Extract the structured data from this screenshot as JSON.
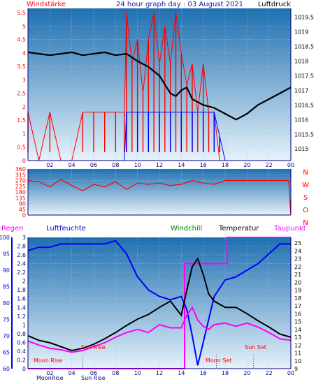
{
  "header": {
    "left_label": "Windstärke",
    "center_label": "24 hour graph day : 03 August 2021",
    "right_label": "Luftdruck"
  },
  "mid_header": {
    "regen": "Regen",
    "luftfeuchte": "Luftfeuchte",
    "windchill": "Windchill",
    "temperatur": "Temperatur",
    "taupunkt": "Taupunkt"
  },
  "colors": {
    "background": "#ffffff",
    "plot_top": "#1e6fb0",
    "plot_bottom": "#e6f2fa",
    "wind_red": "#ff0000",
    "wind_blue": "#0000ff",
    "pressure": "#000000",
    "humidity": "#0000ff",
    "windchill": "#007f00",
    "temperature": "#000000",
    "dewpoint": "#ff00ff",
    "rain": "#ff00ff",
    "direction": "#ff0000"
  },
  "x_tick_labels": [
    "02",
    "04",
    "06",
    "08",
    "10",
    "12",
    "14",
    "16",
    "18",
    "20",
    "22",
    "00"
  ],
  "astro_labels": {
    "moon_rise": "Moon Rise",
    "sun_rise": "Sun Rise",
    "moon_set": "Moon Set",
    "sun_set": "Sun Set",
    "bottom_moon": "MoonRise",
    "bottom_sun": "Sun Rise"
  },
  "chart_data": [
    {
      "type": "line",
      "name": "wind-and-pressure",
      "x_range": [
        0,
        24
      ],
      "left_axis": {
        "ticks": [
          "0",
          "0.5",
          "1",
          "1.5",
          "2",
          "2.5",
          "3",
          "3.5",
          "4",
          "4.5",
          "5",
          "5.5"
        ],
        "ylim": [
          0,
          5.5
        ]
      },
      "right_axis": {
        "ticks": [
          "1015",
          "1015.5",
          "1016",
          "1016.5",
          "1017",
          "1017.5",
          "1018",
          "1018.5",
          "1019",
          "1019.5"
        ],
        "ylim": [
          1014.6,
          1019.8
        ]
      },
      "series": [
        {
          "role": "pressure",
          "x": [
            0,
            1,
            2,
            3,
            4,
            5,
            6,
            7,
            8,
            9,
            10,
            11,
            12,
            13,
            13.5,
            14,
            14.5,
            15,
            16,
            17,
            18,
            19,
            20,
            21,
            22,
            23,
            24
          ],
          "y": [
            1018.3,
            1018.25,
            1018.2,
            1018.25,
            1018.3,
            1018.2,
            1018.25,
            1018.3,
            1018.2,
            1018.25,
            1018.0,
            1017.8,
            1017.5,
            1016.9,
            1016.8,
            1017.0,
            1017.1,
            1016.7,
            1016.5,
            1016.4,
            1016.2,
            1016.0,
            1016.2,
            1016.5,
            1016.7,
            1016.9,
            1017.1
          ]
        },
        {
          "role": "wind-gust",
          "x": [
            0,
            1,
            2,
            3,
            4,
            5,
            6,
            7,
            8,
            8.8,
            9,
            9.5,
            10,
            10.5,
            11,
            11.5,
            12,
            12.5,
            13,
            13.5,
            14,
            14.5,
            15,
            15.5,
            16,
            16.5,
            17,
            17.5,
            18,
            19,
            20,
            21,
            22,
            23,
            24
          ],
          "y": [
            1.8,
            0,
            1.8,
            0,
            0,
            1.8,
            1.8,
            1.8,
            1.8,
            1.8,
            5.5,
            3.6,
            4.5,
            2.5,
            4.5,
            5.5,
            3.6,
            5.0,
            3.6,
            5.5,
            4.0,
            2.8,
            3.6,
            1.8,
            3.6,
            1.8,
            1.8,
            0,
            0,
            0,
            0,
            0,
            0,
            0,
            0
          ]
        },
        {
          "role": "wind-average",
          "x": [
            0,
            8,
            8.8,
            9,
            10,
            11,
            12,
            13,
            14,
            15,
            16,
            17,
            17.5,
            18,
            24
          ],
          "y": [
            0,
            0,
            0,
            1.8,
            1.8,
            1.8,
            1.8,
            1.8,
            1.8,
            1.8,
            1.8,
            1.8,
            0.9,
            0,
            0
          ]
        }
      ]
    },
    {
      "type": "line",
      "name": "wind-direction",
      "x_range": [
        0,
        24
      ],
      "left_axis": {
        "ticks": [
          "0",
          "45",
          "90",
          "135",
          "180",
          "225",
          "270",
          "315",
          "360"
        ],
        "ylim": [
          0,
          360
        ]
      },
      "right_labels": [
        "N",
        "W",
        "S",
        "O",
        "N"
      ],
      "series": [
        {
          "role": "direction",
          "x": [
            0,
            1,
            2,
            3,
            4,
            5,
            6,
            7,
            8,
            9,
            10,
            11,
            12,
            13,
            14,
            15,
            16,
            17,
            18,
            19,
            20,
            21,
            22,
            23,
            23.8,
            24
          ],
          "y": [
            270,
            260,
            220,
            280,
            230,
            190,
            240,
            220,
            260,
            200,
            250,
            240,
            250,
            230,
            240,
            270,
            250,
            240,
            270,
            270,
            270,
            270,
            270,
            270,
            270,
            0
          ]
        }
      ]
    },
    {
      "type": "line",
      "name": "humidity-temperature",
      "x_range": [
        0,
        24
      ],
      "humidity_axis": {
        "ticks": [
          "60",
          "65",
          "70",
          "75",
          "80",
          "85",
          "90",
          "95",
          "100"
        ],
        "ylim": [
          60,
          100
        ]
      },
      "rain_axis": {
        "ticks": [
          "0",
          "0.2",
          "0.4",
          "0.6",
          "0.8",
          "1",
          "1.2",
          "1.4",
          "1.6",
          "1.8",
          "2",
          "2.2",
          "2.4",
          "2.6",
          "2.8",
          "3"
        ],
        "ylim": [
          0,
          3
        ]
      },
      "temperature_axis": {
        "ticks": [
          "9",
          "10",
          "11",
          "12",
          "13",
          "14",
          "15",
          "16",
          "17",
          "18",
          "19",
          "20",
          "21",
          "22",
          "23",
          "24",
          "25"
        ],
        "ylim": [
          9,
          25
        ]
      },
      "series": [
        {
          "role": "humidity",
          "x": [
            0,
            1,
            2,
            3,
            4,
            5,
            6,
            7,
            8,
            9,
            10,
            11,
            12,
            13,
            14,
            14.5,
            15,
            15.5,
            16,
            16.5,
            17,
            18,
            19,
            20,
            21,
            22,
            23,
            24
          ],
          "y": [
            96,
            97,
            97,
            98,
            98,
            98,
            98,
            98,
            99,
            95,
            88,
            84,
            82,
            81,
            82,
            78,
            70,
            61,
            68,
            75,
            82,
            87,
            88,
            90,
            92,
            95,
            98,
            98
          ]
        },
        {
          "role": "temperature",
          "x": [
            0,
            1,
            2,
            3,
            4,
            5,
            6,
            7,
            8,
            9,
            10,
            11,
            12,
            13,
            14,
            14.5,
            15,
            15.5,
            16,
            16.5,
            17,
            18,
            19,
            20,
            21,
            22,
            23,
            24
          ],
          "y": [
            13.2,
            12.6,
            12.3,
            11.8,
            11.3,
            11.6,
            12.1,
            12.8,
            13.6,
            14.5,
            15.3,
            15.9,
            16.8,
            17.6,
            15.8,
            19,
            22,
            23,
            21,
            18.5,
            17.6,
            16.8,
            16.8,
            16.0,
            15.1,
            14.3,
            13.4,
            13.0
          ]
        },
        {
          "role": "dewpoint",
          "x": [
            0,
            1,
            2,
            3,
            4,
            5,
            6,
            7,
            8,
            9,
            10,
            11,
            12,
            13,
            14,
            14.5,
            15,
            15.5,
            16,
            16.5,
            17,
            18,
            19,
            20,
            21,
            22,
            23,
            24
          ],
          "y": [
            12.5,
            12.0,
            11.6,
            11.4,
            11.1,
            11.3,
            11.8,
            12.3,
            13.0,
            13.6,
            14.0,
            13.6,
            14.6,
            14.2,
            14.2,
            15.8,
            16.8,
            15.2,
            14.4,
            14.0,
            14.6,
            14.8,
            14.4,
            14.8,
            14.3,
            13.6,
            12.8,
            12.6
          ]
        },
        {
          "role": "rain",
          "x": [
            0,
            14.3,
            14.3,
            18.2,
            18.2,
            24
          ],
          "y": [
            0,
            0,
            2.4,
            2.4,
            3.0,
            3.0
          ]
        }
      ]
    }
  ]
}
